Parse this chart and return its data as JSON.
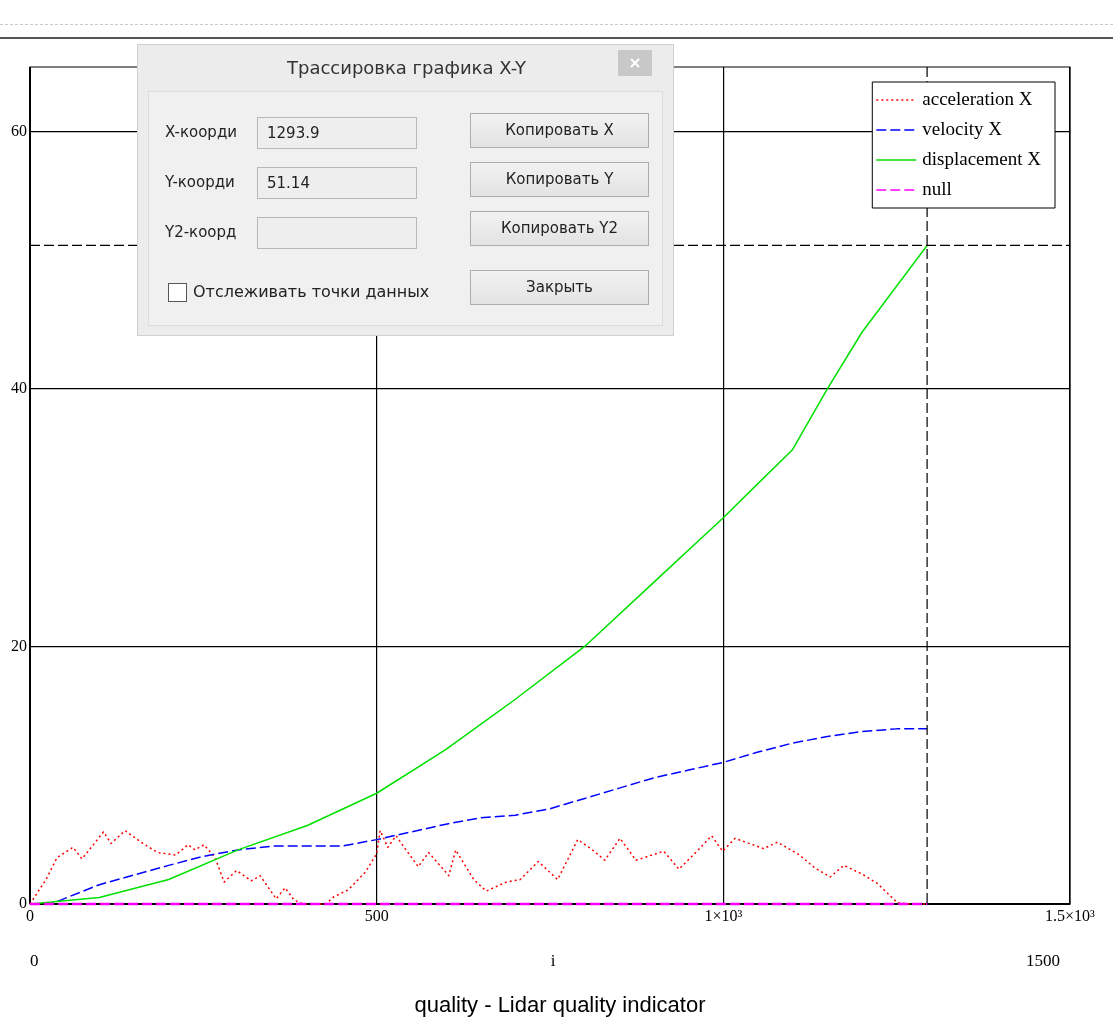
{
  "chart_data": {
    "type": "line",
    "xlabel": "i",
    "xlim": [
      0,
      1500
    ],
    "ylim": [
      0,
      65
    ],
    "xticks": [
      0,
      500,
      {
        "value": 1000,
        "label": "1×10³"
      },
      {
        "value": 1500,
        "label": "1.5×10³"
      }
    ],
    "yticks": [
      0,
      20,
      40,
      60
    ],
    "grid": true,
    "legend": "top right",
    "marker": "none",
    "series": [
      {
        "name": "acceleration X",
        "color": "#ff0000",
        "line_style": "dotted",
        "x": [
          0,
          23,
          39,
          62,
          75,
          106,
          117,
          137,
          163,
          184,
          210,
          228,
          238,
          251,
          267,
          280,
          298,
          319,
          332,
          355,
          368,
          381,
          394,
          427,
          438,
          459,
          484,
          500,
          505,
          516,
          528,
          541,
          560,
          575,
          604,
          614,
          640,
          658,
          687,
          707,
          733,
          761,
          790,
          809,
          829,
          851,
          874,
          914,
          936,
          962,
          983,
          999,
          1017,
          1058,
          1078,
          1110,
          1132,
          1154,
          1174,
          1201,
          1222,
          1251,
          1270,
          1294
        ],
        "values": [
          0,
          1.9,
          3.6,
          4.4,
          3.5,
          5.6,
          4.7,
          5.7,
          4.7,
          4.0,
          3.8,
          4.6,
          4.2,
          4.6,
          3.6,
          1.7,
          2.6,
          1.8,
          2.2,
          0.4,
          1.25,
          0.3,
          0,
          0,
          0.55,
          1.1,
          2.5,
          3.9,
          5.7,
          4.4,
          5.3,
          4.3,
          2.9,
          4.0,
          2.2,
          4.2,
          1.9,
          1.0,
          1.7,
          1.9,
          3.3,
          1.9,
          5.0,
          4.3,
          3.4,
          5.1,
          3.4,
          4.1,
          2.7,
          4.1,
          5.3,
          4.1,
          5.1,
          4.3,
          4.8,
          3.8,
          2.8,
          2.1,
          3.0,
          2.3,
          1.6,
          0.1,
          0,
          0
        ]
      },
      {
        "name": "velocity X",
        "color": "#0000ff",
        "line_style": "dashed",
        "x": [
          0,
          30,
          100,
          200,
          250,
          300,
          350,
          400,
          450,
          500,
          550,
          600,
          650,
          700,
          750,
          800,
          850,
          900,
          950,
          1000,
          1050,
          1100,
          1150,
          1200,
          1250,
          1294
        ],
        "values": [
          0,
          0,
          1.5,
          3.0,
          3.7,
          4.2,
          4.5,
          4.5,
          4.5,
          5.0,
          5.6,
          6.2,
          6.7,
          6.9,
          7.4,
          8.2,
          9.0,
          9.8,
          10.4,
          11.0,
          11.8,
          12.5,
          13.0,
          13.4,
          13.6,
          13.6
        ]
      },
      {
        "name": "displacement X",
        "color": "#00e000",
        "line_style": "solid",
        "x": [
          0,
          100,
          200,
          300,
          400,
          500,
          600,
          700,
          800,
          900,
          1000,
          1100,
          1150,
          1200,
          1293.9
        ],
        "values": [
          0,
          0.5,
          1.9,
          4.2,
          6.1,
          8.6,
          12,
          15.9,
          20,
          25,
          30,
          35.3,
          40,
          44.4,
          51.14
        ]
      },
      {
        "name": "null",
        "color": "#ff00ff",
        "line_style": "dashed",
        "x": [
          0,
          1294
        ],
        "values": [
          0,
          0
        ]
      }
    ],
    "ref_lines": [
      {
        "axis": "x",
        "value": 1293.9,
        "color": "#000000",
        "line_style": "dashed"
      },
      {
        "axis": "y",
        "value": 51.14,
        "color": "#000000",
        "line_style": "dashed"
      }
    ],
    "annotations": [
      "0",
      "1500",
      "quality - Lidar quality indicator",
      "Трассировка графика X-Y",
      "X-коорди",
      "1293.9",
      "Y-коорди",
      "51.14",
      "Y2-коорд",
      "Копировать X",
      "Копировать Y",
      "Копировать Y2",
      "Отслеживать точки данных",
      "Закрыть"
    ]
  }
}
